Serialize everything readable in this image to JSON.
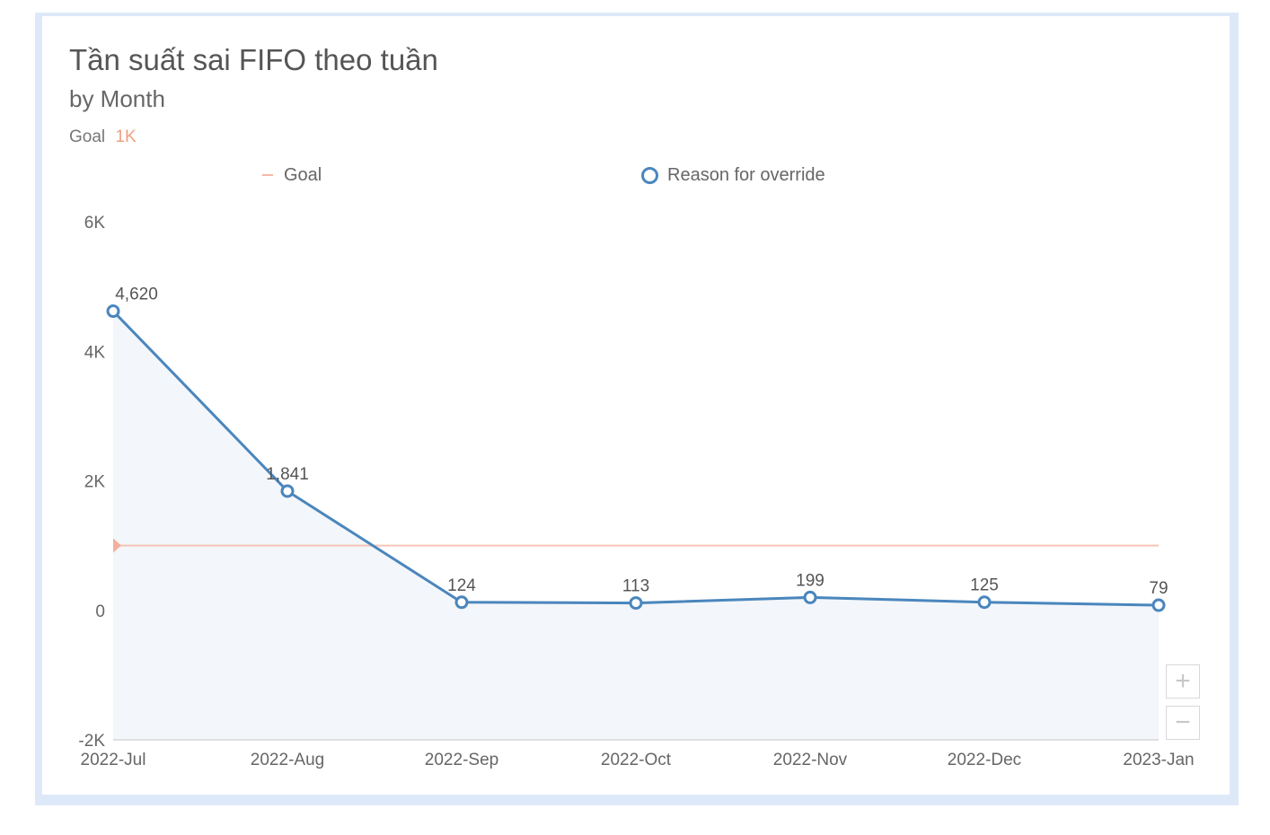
{
  "header": {
    "title": "Tần suất sai FIFO theo tuần",
    "subtitle": "by Month",
    "goal_label": "Goal",
    "goal_value": "1K"
  },
  "legend": {
    "goal": "Goal",
    "series": "Reason for override"
  },
  "zoom": {
    "in_label": "+",
    "out_label": "−"
  },
  "colors": {
    "series_line": "#4a86bd",
    "area_fill": "#f3f6fa",
    "goal_line": "#f6c4b6",
    "goal_marker": "#f4b09c",
    "axis": "#e0e0e0"
  },
  "chart_data": {
    "type": "line",
    "title": "Tần suất sai FIFO theo tuần",
    "subtitle": "by Month",
    "categories": [
      "2022-Jul",
      "2022-Aug",
      "2022-Sep",
      "2022-Oct",
      "2022-Nov",
      "2022-Dec",
      "2023-Jan"
    ],
    "series": [
      {
        "name": "Reason for override",
        "values": [
          4620,
          1841,
          124,
          113,
          199,
          125,
          79
        ],
        "labels": [
          "4,620",
          "1,841",
          "124",
          "113",
          "199",
          "125",
          "79"
        ]
      }
    ],
    "goal": {
      "name": "Goal",
      "value": 1000
    },
    "yticks": [
      {
        "value": 6000,
        "label": "6K"
      },
      {
        "value": 4000,
        "label": "4K"
      },
      {
        "value": 2000,
        "label": "2K"
      },
      {
        "value": 0,
        "label": "0"
      },
      {
        "value": -2000,
        "label": "-2K"
      }
    ],
    "ylim": [
      -2000,
      6000
    ],
    "legend_position": "top",
    "grid": false,
    "area_fill": true
  }
}
